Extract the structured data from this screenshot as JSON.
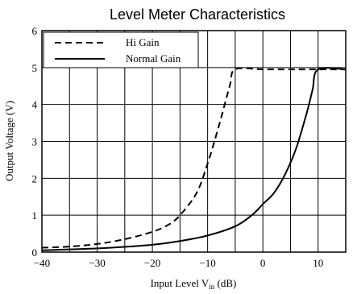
{
  "chart_data": {
    "type": "line",
    "title": "Level Meter Characteristics",
    "xlabel_main": "Input Level V",
    "xlabel_sub": "in",
    "xlabel_unit": " (dB)",
    "ylabel": "Output Voltage (V)",
    "xlim": [
      -40,
      15
    ],
    "ylim": [
      0,
      6
    ],
    "xticks": [
      -40,
      -30,
      -20,
      -10,
      0,
      10
    ],
    "xtick_labels": [
      "−40",
      "−30",
      "−20",
      "−10",
      "0",
      "10"
    ],
    "yticks": [
      0,
      1,
      2,
      3,
      4,
      5,
      6
    ],
    "ytick_labels": [
      "0",
      "1",
      "2",
      "3",
      "4",
      "5",
      "6"
    ],
    "grid": true,
    "legend_position": "top-left",
    "series": [
      {
        "name": "Hi Gain",
        "style": "dashed",
        "color": "#000000",
        "x": [
          -40,
          -35,
          -30,
          -25,
          -20,
          -17,
          -15,
          -12,
          -10,
          -8,
          -6,
          -5,
          0,
          5,
          10,
          15
        ],
        "y": [
          0.12,
          0.15,
          0.22,
          0.35,
          0.55,
          0.75,
          1.0,
          1.6,
          2.4,
          3.4,
          4.5,
          4.95,
          4.95,
          4.95,
          4.95,
          4.95
        ]
      },
      {
        "name": "Normal Gain",
        "style": "solid",
        "color": "#000000",
        "x": [
          -40,
          -30,
          -20,
          -15,
          -10,
          -5,
          -2,
          0,
          2,
          4,
          6,
          8,
          9,
          10,
          15
        ],
        "y": [
          0.05,
          0.1,
          0.2,
          0.3,
          0.45,
          0.7,
          1.0,
          1.3,
          1.6,
          2.1,
          2.8,
          3.8,
          4.4,
          4.95,
          4.95
        ]
      }
    ]
  }
}
